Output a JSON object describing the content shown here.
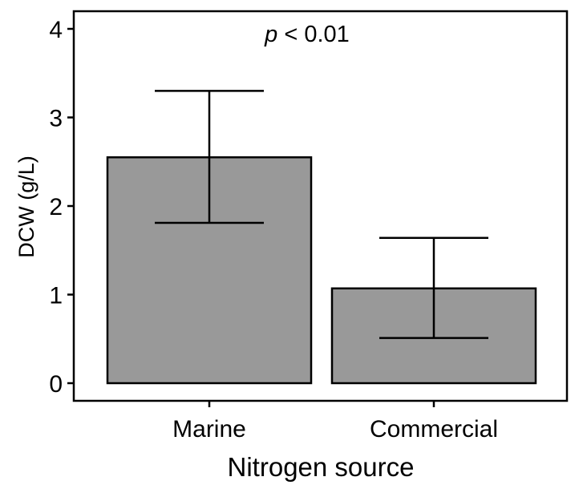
{
  "chart_data": {
    "type": "bar",
    "categories": [
      "Marine",
      "Commercial"
    ],
    "values": [
      2.55,
      1.07
    ],
    "error_upper": [
      3.3,
      1.64
    ],
    "error_lower": [
      1.81,
      0.51
    ],
    "xlabel": "Nitrogen source",
    "ylabel": "DCW (g/L)",
    "ylim": [
      0,
      4.2
    ],
    "yticks": [
      "0",
      "1",
      "2",
      "3",
      "4"
    ],
    "grid": false,
    "bar_color": "#999999",
    "annotation": {
      "italic": "p",
      "text": " < 0.01"
    }
  }
}
